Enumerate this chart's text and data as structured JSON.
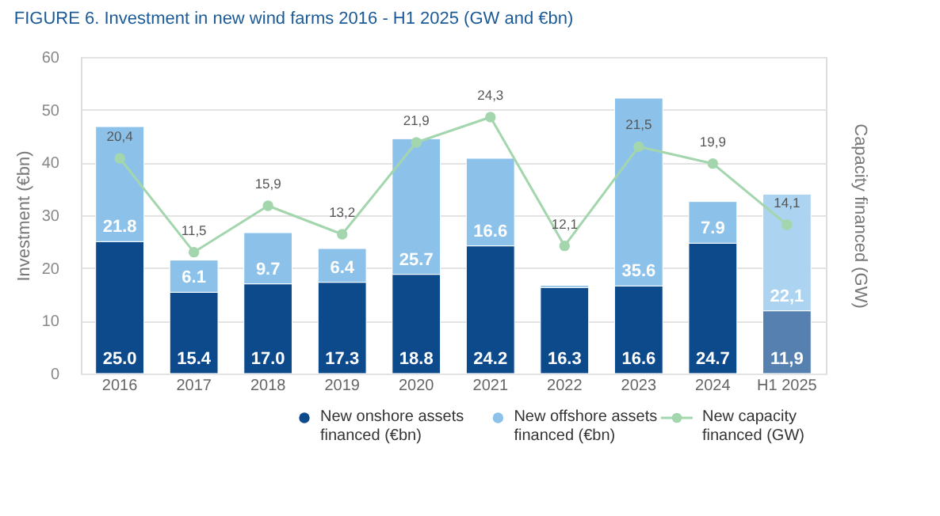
{
  "chart_data": {
    "type": "bar",
    "stacked": true,
    "title": "FIGURE 6.  Investment in new wind farms 2016 - H1 2025 (GW and €bn)",
    "categories": [
      "2016",
      "2017",
      "2018",
      "2019",
      "2020",
      "2021",
      "2022",
      "2023",
      "2024",
      "H1 2025"
    ],
    "ylabel": "Investment (€bn)",
    "y2label": "Capacity financed (GW)",
    "ylim": [
      0,
      60
    ],
    "yticks": [
      0,
      10,
      20,
      30,
      40,
      50,
      60
    ],
    "y2lim": [
      0,
      30
    ],
    "grid": "y",
    "legend": "bottom",
    "series": [
      {
        "name": "New onshore assets financed (€bn)",
        "color": "#0d4a8c",
        "colors": [
          "#0d4a8c",
          "#0d4a8c",
          "#0d4a8c",
          "#0d4a8c",
          "#0d4a8c",
          "#0d4a8c",
          "#0d4a8c",
          "#0d4a8c",
          "#0d4a8c",
          "#5580b0"
        ],
        "values": [
          25.0,
          15.4,
          17.0,
          17.3,
          18.8,
          24.2,
          16.3,
          16.6,
          24.7,
          11.9
        ],
        "value_labels": [
          "25.0",
          "15.4",
          "17.0",
          "17.3",
          "18.8",
          "24.2",
          "16.3",
          "16.6",
          "24.7",
          "11,9"
        ]
      },
      {
        "name": "New offshore assets financed (€bn)",
        "color": "#8cc2ea",
        "colors": [
          "#8cc2ea",
          "#8cc2ea",
          "#8cc2ea",
          "#8cc2ea",
          "#8cc2ea",
          "#8cc2ea",
          "#8cc2ea",
          "#8cc2ea",
          "#8cc2ea",
          "#acd3f0"
        ],
        "values": [
          21.8,
          6.1,
          9.7,
          6.4,
          25.7,
          16.6,
          0.4,
          35.6,
          7.9,
          22.1
        ],
        "value_labels": [
          "21.8",
          "6.1",
          "9.7",
          "6.4",
          "25.7",
          "16.6",
          null,
          "35.6",
          "7.9",
          "22,1"
        ]
      },
      {
        "name": "New capacity financed (GW)",
        "type": "line",
        "axis": "y2",
        "marker": "circle",
        "color": "#a3d6ad",
        "values": [
          20.4,
          11.5,
          15.9,
          13.2,
          21.9,
          24.3,
          12.1,
          21.5,
          19.9,
          14.1
        ],
        "value_labels": [
          "20,4",
          "11,5",
          "15,9",
          "13,2",
          "21,9",
          "24,3",
          "12,1",
          "21,5",
          "19,9",
          "14,1"
        ]
      }
    ]
  }
}
